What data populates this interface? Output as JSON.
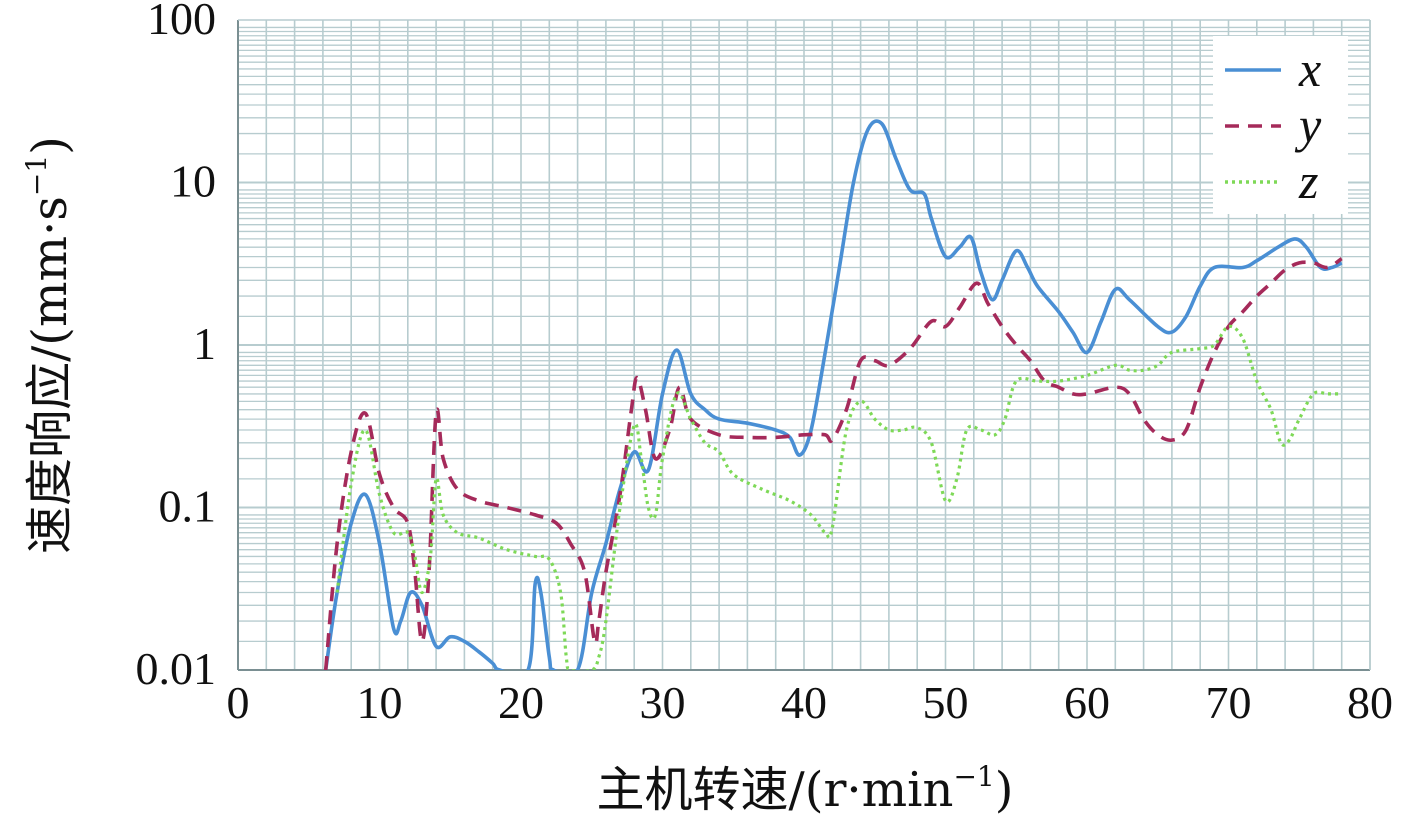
{
  "chart_data": {
    "type": "line",
    "xlabel": "主机转速/(r·min",
    "xlabel_sup": "−1",
    "xlabel_tail": ")",
    "ylabel": "速度响应/(mm·s",
    "ylabel_sup": "−1",
    "ylabel_tail": ")",
    "xlim": [
      0,
      80
    ],
    "ylim": [
      0.01,
      100
    ],
    "y_scale": "log",
    "grid": true,
    "legend_position": "top-right",
    "x_ticks": [
      "0",
      "10",
      "20",
      "30",
      "40",
      "50",
      "60",
      "70",
      "80"
    ],
    "y_ticks": [
      "0.01",
      "0.1",
      "1",
      "10",
      "100"
    ],
    "series": [
      {
        "name": "x",
        "color": "#4a8fd4",
        "style": "solid",
        "points": [
          [
            6.2,
            0.01
          ],
          [
            7.0,
            0.03
          ],
          [
            8.0,
            0.08
          ],
          [
            9.0,
            0.12
          ],
          [
            10.0,
            0.06
          ],
          [
            11.0,
            0.018
          ],
          [
            11.5,
            0.02
          ],
          [
            12.2,
            0.03
          ],
          [
            13.0,
            0.025
          ],
          [
            14.0,
            0.014
          ],
          [
            15.0,
            0.016
          ],
          [
            16.0,
            0.015
          ],
          [
            17.0,
            0.013
          ],
          [
            18.0,
            0.011
          ],
          [
            18.5,
            0.01
          ],
          [
            20.5,
            0.01
          ],
          [
            21.0,
            0.034
          ],
          [
            21.4,
            0.03
          ],
          [
            22.0,
            0.012
          ],
          [
            22.3,
            0.01
          ],
          [
            24.0,
            0.01
          ],
          [
            25.0,
            0.03
          ],
          [
            26.0,
            0.06
          ],
          [
            27.0,
            0.13
          ],
          [
            28.0,
            0.22
          ],
          [
            29.0,
            0.17
          ],
          [
            30.0,
            0.5
          ],
          [
            31.0,
            0.93
          ],
          [
            32.0,
            0.5
          ],
          [
            33.0,
            0.4
          ],
          [
            34.0,
            0.35
          ],
          [
            36.0,
            0.33
          ],
          [
            38.0,
            0.3
          ],
          [
            39.0,
            0.27
          ],
          [
            39.7,
            0.21
          ],
          [
            40.5,
            0.3
          ],
          [
            41.5,
            0.9
          ],
          [
            42.5,
            3
          ],
          [
            43.5,
            10
          ],
          [
            44.5,
            21
          ],
          [
            45.5,
            23
          ],
          [
            46.5,
            14
          ],
          [
            47.5,
            9
          ],
          [
            48.5,
            8.5
          ],
          [
            49.0,
            6
          ],
          [
            50.0,
            3.5
          ],
          [
            51.0,
            4
          ],
          [
            51.8,
            4.6
          ],
          [
            52.5,
            2.8
          ],
          [
            53.3,
            1.9
          ],
          [
            54.0,
            2.5
          ],
          [
            55.0,
            3.8
          ],
          [
            55.8,
            3
          ],
          [
            56.5,
            2.3
          ],
          [
            58.0,
            1.6
          ],
          [
            59.0,
            1.2
          ],
          [
            60.0,
            0.9
          ],
          [
            61.0,
            1.4
          ],
          [
            62.0,
            2.2
          ],
          [
            63.0,
            1.9
          ],
          [
            65.0,
            1.3
          ],
          [
            66.0,
            1.2
          ],
          [
            67.0,
            1.5
          ],
          [
            68.0,
            2.3
          ],
          [
            69.0,
            3
          ],
          [
            71.0,
            3
          ],
          [
            72.0,
            3.3
          ],
          [
            73.5,
            4
          ],
          [
            74.7,
            4.5
          ],
          [
            75.5,
            4
          ],
          [
            76.5,
            3
          ],
          [
            77.3,
            3
          ],
          [
            78.0,
            3.2
          ]
        ]
      },
      {
        "name": "y",
        "color": "#a52a5a",
        "style": "dashed",
        "points": [
          [
            6.2,
            0.01
          ],
          [
            7.0,
            0.06
          ],
          [
            8.0,
            0.22
          ],
          [
            9.0,
            0.38
          ],
          [
            10.0,
            0.16
          ],
          [
            11.0,
            0.1
          ],
          [
            12.0,
            0.08
          ],
          [
            12.5,
            0.04
          ],
          [
            13.0,
            0.015
          ],
          [
            13.5,
            0.04
          ],
          [
            14.0,
            0.38
          ],
          [
            14.5,
            0.2
          ],
          [
            15.5,
            0.13
          ],
          [
            17.0,
            0.11
          ],
          [
            19.0,
            0.1
          ],
          [
            21.0,
            0.09
          ],
          [
            22.5,
            0.08
          ],
          [
            23.5,
            0.06
          ],
          [
            24.5,
            0.04
          ],
          [
            25.2,
            0.015
          ],
          [
            25.5,
            0.02
          ],
          [
            26.0,
            0.04
          ],
          [
            27.0,
            0.12
          ],
          [
            27.8,
            0.4
          ],
          [
            28.2,
            0.63
          ],
          [
            28.8,
            0.4
          ],
          [
            29.5,
            0.2
          ],
          [
            30.5,
            0.3
          ],
          [
            31.2,
            0.55
          ],
          [
            32.0,
            0.35
          ],
          [
            34.0,
            0.28
          ],
          [
            36.0,
            0.27
          ],
          [
            38.0,
            0.27
          ],
          [
            40.0,
            0.28
          ],
          [
            41.5,
            0.28
          ],
          [
            42.0,
            0.26
          ],
          [
            43.0,
            0.4
          ],
          [
            44.0,
            0.8
          ],
          [
            45.0,
            0.8
          ],
          [
            46.0,
            0.75
          ],
          [
            47.5,
            0.95
          ],
          [
            49.0,
            1.4
          ],
          [
            50.0,
            1.3
          ],
          [
            51.0,
            1.7
          ],
          [
            52.2,
            2.4
          ],
          [
            53.0,
            1.8
          ],
          [
            54.0,
            1.3
          ],
          [
            55.0,
            1.0
          ],
          [
            56.0,
            0.8
          ],
          [
            57.0,
            0.6
          ],
          [
            58.0,
            0.55
          ],
          [
            59.0,
            0.5
          ],
          [
            60.0,
            0.5
          ],
          [
            62.0,
            0.55
          ],
          [
            63.0,
            0.5
          ],
          [
            64.0,
            0.35
          ],
          [
            65.0,
            0.28
          ],
          [
            66.0,
            0.26
          ],
          [
            67.0,
            0.3
          ],
          [
            68.0,
            0.55
          ],
          [
            69.0,
            0.9
          ],
          [
            70.0,
            1.3
          ],
          [
            71.0,
            1.6
          ],
          [
            72.0,
            2.0
          ],
          [
            73.0,
            2.4
          ],
          [
            74.0,
            2.9
          ],
          [
            75.0,
            3.2
          ],
          [
            76.0,
            3.2
          ],
          [
            77.0,
            3.0
          ],
          [
            78.0,
            3.4
          ]
        ]
      },
      {
        "name": "z",
        "color": "#7ed957",
        "style": "dotted",
        "points": [
          [
            7.0,
            0.03
          ],
          [
            8.0,
            0.14
          ],
          [
            9.0,
            0.3
          ],
          [
            10.0,
            0.12
          ],
          [
            11.0,
            0.07
          ],
          [
            12.0,
            0.07
          ],
          [
            12.5,
            0.05
          ],
          [
            13.0,
            0.03
          ],
          [
            13.6,
            0.05
          ],
          [
            14.0,
            0.15
          ],
          [
            14.5,
            0.09
          ],
          [
            15.5,
            0.07
          ],
          [
            17.0,
            0.065
          ],
          [
            19.0,
            0.055
          ],
          [
            21.0,
            0.05
          ],
          [
            22.0,
            0.048
          ],
          [
            22.8,
            0.03
          ],
          [
            23.2,
            0.012
          ],
          [
            23.5,
            0.01
          ],
          [
            25.0,
            0.01
          ],
          [
            25.5,
            0.012
          ],
          [
            26.0,
            0.02
          ],
          [
            27.0,
            0.1
          ],
          [
            28.0,
            0.32
          ],
          [
            28.5,
            0.2
          ],
          [
            29.0,
            0.1
          ],
          [
            29.5,
            0.09
          ],
          [
            30.0,
            0.2
          ],
          [
            31.0,
            0.5
          ],
          [
            32.0,
            0.35
          ],
          [
            33.0,
            0.25
          ],
          [
            34.0,
            0.22
          ],
          [
            35.0,
            0.16
          ],
          [
            37.0,
            0.13
          ],
          [
            39.0,
            0.11
          ],
          [
            40.5,
            0.09
          ],
          [
            41.5,
            0.07
          ],
          [
            42.0,
            0.075
          ],
          [
            43.0,
            0.3
          ],
          [
            44.0,
            0.45
          ],
          [
            45.0,
            0.35
          ],
          [
            46.0,
            0.3
          ],
          [
            47.0,
            0.3
          ],
          [
            48.0,
            0.31
          ],
          [
            49.0,
            0.25
          ],
          [
            50.0,
            0.11
          ],
          [
            50.8,
            0.15
          ],
          [
            51.5,
            0.3
          ],
          [
            52.5,
            0.3
          ],
          [
            53.5,
            0.28
          ],
          [
            54.2,
            0.35
          ],
          [
            55.0,
            0.6
          ],
          [
            56.5,
            0.6
          ],
          [
            58.0,
            0.6
          ],
          [
            60.0,
            0.65
          ],
          [
            62.0,
            0.75
          ],
          [
            63.0,
            0.7
          ],
          [
            64.0,
            0.7
          ],
          [
            65.0,
            0.75
          ],
          [
            66.0,
            0.9
          ],
          [
            68.0,
            0.95
          ],
          [
            69.0,
            1.0
          ],
          [
            70.0,
            1.3
          ],
          [
            71.0,
            1.1
          ],
          [
            72.0,
            0.6
          ],
          [
            73.0,
            0.4
          ],
          [
            73.7,
            0.25
          ],
          [
            74.3,
            0.26
          ],
          [
            75.0,
            0.35
          ],
          [
            76.0,
            0.5
          ],
          [
            77.0,
            0.5
          ],
          [
            78.0,
            0.5
          ]
        ]
      }
    ]
  }
}
